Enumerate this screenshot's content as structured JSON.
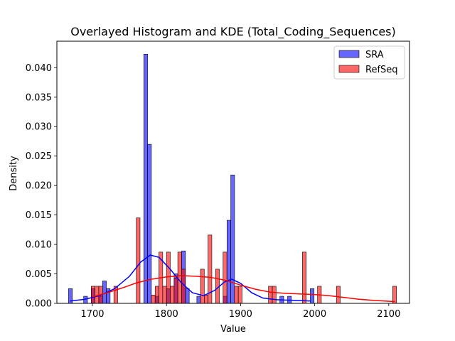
{
  "chart_data": {
    "type": "histogram",
    "title": "Overlayed Histogram and KDE (Total_Coding_Sequences)",
    "xlabel": "Value",
    "ylabel": "Density",
    "xlim": [
      1652,
      2128
    ],
    "ylim": [
      0,
      0.0445
    ],
    "xticks": [
      1700,
      1800,
      1900,
      2000,
      2100
    ],
    "yticks": [
      0.0,
      0.005,
      0.01,
      0.015,
      0.02,
      0.025,
      0.03,
      0.035,
      0.04
    ],
    "ytick_labels": [
      "0.000",
      "0.005",
      "0.010",
      "0.015",
      "0.020",
      "0.025",
      "0.030",
      "0.035",
      "0.040"
    ],
    "grid": false,
    "legend_position": "top-right",
    "bin_width": 5.1,
    "series": [
      {
        "name": "SRA",
        "color": "#0000ff",
        "bins": [
          {
            "x": 1670.3,
            "y": 0.0025
          },
          {
            "x": 1690.7,
            "y": 0.0012
          },
          {
            "x": 1700.9,
            "y": 0.0025
          },
          {
            "x": 1711.1,
            "y": 0.0012
          },
          {
            "x": 1716.2,
            "y": 0.0038
          },
          {
            "x": 1721.3,
            "y": 0.0025
          },
          {
            "x": 1771.9,
            "y": 0.0423
          },
          {
            "x": 1777.0,
            "y": 0.027
          },
          {
            "x": 1787.2,
            "y": 0.0012
          },
          {
            "x": 1802.6,
            "y": 0.0025
          },
          {
            "x": 1812.8,
            "y": 0.005
          },
          {
            "x": 1823.0,
            "y": 0.0089
          },
          {
            "x": 1828.1,
            "y": 0.0025
          },
          {
            "x": 1843.5,
            "y": 0.0012
          },
          {
            "x": 1879.1,
            "y": 0.0012
          },
          {
            "x": 1884.2,
            "y": 0.0141
          },
          {
            "x": 1889.3,
            "y": 0.0218
          },
          {
            "x": 1955.6,
            "y": 0.0012
          },
          {
            "x": 1966.0,
            "y": 0.0012
          },
          {
            "x": 1996.6,
            "y": 0.0025
          }
        ],
        "kde": [
          {
            "x": 1670,
            "y": 0.0004
          },
          {
            "x": 1690,
            "y": 0.0007
          },
          {
            "x": 1710,
            "y": 0.0013
          },
          {
            "x": 1730,
            "y": 0.0025
          },
          {
            "x": 1750,
            "y": 0.0046
          },
          {
            "x": 1765,
            "y": 0.007
          },
          {
            "x": 1778,
            "y": 0.0082
          },
          {
            "x": 1790,
            "y": 0.0078
          },
          {
            "x": 1805,
            "y": 0.0058
          },
          {
            "x": 1820,
            "y": 0.0035
          },
          {
            "x": 1835,
            "y": 0.0018
          },
          {
            "x": 1850,
            "y": 0.0013
          },
          {
            "x": 1865,
            "y": 0.0022
          },
          {
            "x": 1878,
            "y": 0.0036
          },
          {
            "x": 1888,
            "y": 0.0041
          },
          {
            "x": 1900,
            "y": 0.0034
          },
          {
            "x": 1915,
            "y": 0.0018
          },
          {
            "x": 1930,
            "y": 0.0009
          },
          {
            "x": 1950,
            "y": 0.0006
          },
          {
            "x": 1975,
            "y": 0.0005
          },
          {
            "x": 1995,
            "y": 0.0004
          }
        ]
      },
      {
        "name": "RefSeq",
        "color": "#ff0000",
        "bins": [
          {
            "x": 1700.9,
            "y": 0.0029
          },
          {
            "x": 1706.0,
            "y": 0.0029
          },
          {
            "x": 1711.1,
            "y": 0.0029
          },
          {
            "x": 1731.5,
            "y": 0.0029
          },
          {
            "x": 1761.7,
            "y": 0.0145
          },
          {
            "x": 1782.1,
            "y": 0.0014
          },
          {
            "x": 1787.2,
            "y": 0.0029
          },
          {
            "x": 1792.3,
            "y": 0.0087
          },
          {
            "x": 1797.4,
            "y": 0.0029
          },
          {
            "x": 1802.5,
            "y": 0.0087
          },
          {
            "x": 1807.6,
            "y": 0.0029
          },
          {
            "x": 1812.7,
            "y": 0.0043
          },
          {
            "x": 1817.8,
            "y": 0.0087
          },
          {
            "x": 1822.9,
            "y": 0.0058
          },
          {
            "x": 1848.4,
            "y": 0.0058
          },
          {
            "x": 1853.5,
            "y": 0.0014
          },
          {
            "x": 1858.6,
            "y": 0.0116
          },
          {
            "x": 1868.8,
            "y": 0.0058
          },
          {
            "x": 1878.9,
            "y": 0.0087
          },
          {
            "x": 1894.3,
            "y": 0.0029
          },
          {
            "x": 1899.4,
            "y": 0.0029
          },
          {
            "x": 1940.2,
            "y": 0.0029
          },
          {
            "x": 1945.3,
            "y": 0.0029
          },
          {
            "x": 1986.0,
            "y": 0.0087
          },
          {
            "x": 2006.4,
            "y": 0.0029
          },
          {
            "x": 2031.9,
            "y": 0.0029
          },
          {
            "x": 2107.9,
            "y": 0.0029
          }
        ],
        "kde": [
          {
            "x": 1700,
            "y": 0.0011
          },
          {
            "x": 1720,
            "y": 0.0018
          },
          {
            "x": 1740,
            "y": 0.0026
          },
          {
            "x": 1760,
            "y": 0.0035
          },
          {
            "x": 1780,
            "y": 0.0041
          },
          {
            "x": 1800,
            "y": 0.0045
          },
          {
            "x": 1820,
            "y": 0.0047
          },
          {
            "x": 1840,
            "y": 0.0046
          },
          {
            "x": 1860,
            "y": 0.0044
          },
          {
            "x": 1880,
            "y": 0.0039
          },
          {
            "x": 1900,
            "y": 0.0031
          },
          {
            "x": 1920,
            "y": 0.0024
          },
          {
            "x": 1940,
            "y": 0.0019
          },
          {
            "x": 1960,
            "y": 0.0017
          },
          {
            "x": 1980,
            "y": 0.0016
          },
          {
            "x": 2000,
            "y": 0.0015
          },
          {
            "x": 2020,
            "y": 0.0013
          },
          {
            "x": 2040,
            "y": 0.001
          },
          {
            "x": 2060,
            "y": 0.0007
          },
          {
            "x": 2080,
            "y": 0.0005
          },
          {
            "x": 2108,
            "y": 0.0003
          }
        ]
      }
    ]
  }
}
